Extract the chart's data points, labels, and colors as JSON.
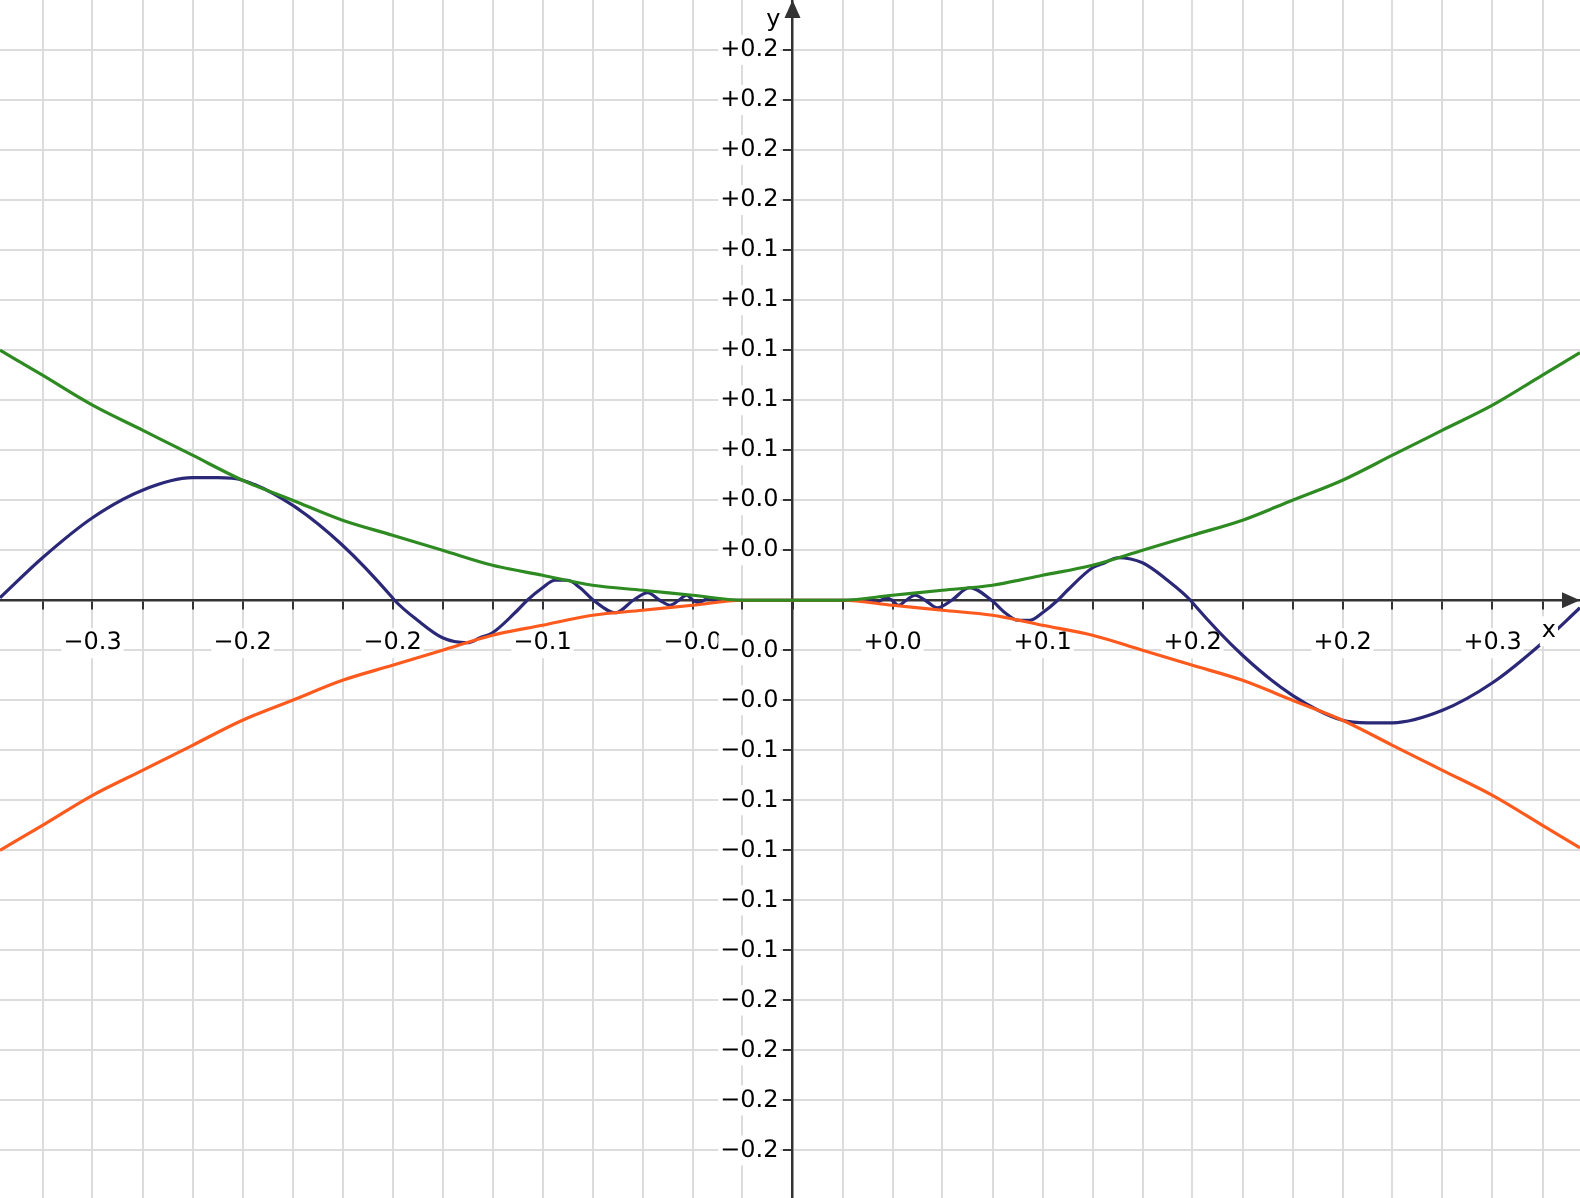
{
  "chart_data": {
    "type": "line",
    "xlabel": "x",
    "ylabel": "y",
    "legend": false,
    "grid": true,
    "marker": "none",
    "line_style": "solid",
    "xlim": [
      -0.317,
      0.315
    ],
    "ylim": [
      -0.239,
      0.24
    ],
    "xticks": [
      {
        "value": -0.3,
        "label": null
      },
      {
        "value": -0.28,
        "label": "−0.3"
      },
      {
        "value": -0.26,
        "label": null
      },
      {
        "value": -0.24,
        "label": null
      },
      {
        "value": -0.22,
        "label": "−0.2"
      },
      {
        "value": -0.2,
        "label": null
      },
      {
        "value": -0.18,
        "label": null
      },
      {
        "value": -0.16,
        "label": "−0.2"
      },
      {
        "value": -0.14,
        "label": null
      },
      {
        "value": -0.12,
        "label": null
      },
      {
        "value": -0.1,
        "label": "−0.1"
      },
      {
        "value": -0.08,
        "label": null
      },
      {
        "value": -0.06,
        "label": null
      },
      {
        "value": -0.04,
        "label": "−0.0"
      },
      {
        "value": -0.02,
        "label": null
      },
      {
        "value": 0,
        "label": null
      },
      {
        "value": 0.02,
        "label": null
      },
      {
        "value": 0.04,
        "label": "+0.0"
      },
      {
        "value": 0.06,
        "label": null
      },
      {
        "value": 0.08,
        "label": null
      },
      {
        "value": 0.1,
        "label": "+0.1"
      },
      {
        "value": 0.12,
        "label": null
      },
      {
        "value": 0.14,
        "label": null
      },
      {
        "value": 0.16,
        "label": "+0.2"
      },
      {
        "value": 0.18,
        "label": null
      },
      {
        "value": 0.2,
        "label": null
      },
      {
        "value": 0.22,
        "label": "+0.2"
      },
      {
        "value": 0.24,
        "label": null
      },
      {
        "value": 0.26,
        "label": null
      },
      {
        "value": 0.28,
        "label": "+0.3"
      },
      {
        "value": 0.3,
        "label": null
      }
    ],
    "yticks": [
      {
        "value": -0.22,
        "label": "−0.2"
      },
      {
        "value": -0.2,
        "label": "−0.2"
      },
      {
        "value": -0.18,
        "label": "−0.2"
      },
      {
        "value": -0.16,
        "label": "−0.2"
      },
      {
        "value": -0.14,
        "label": "−0.1"
      },
      {
        "value": -0.12,
        "label": "−0.1"
      },
      {
        "value": -0.1,
        "label": "−0.1"
      },
      {
        "value": -0.08,
        "label": "−0.1"
      },
      {
        "value": -0.06,
        "label": "−0.1"
      },
      {
        "value": -0.04,
        "label": "−0.0"
      },
      {
        "value": -0.02,
        "label": "−0.0"
      },
      {
        "value": 0,
        "label": null
      },
      {
        "value": 0.02,
        "label": "+0.0"
      },
      {
        "value": 0.04,
        "label": "+0.0"
      },
      {
        "value": 0.06,
        "label": "+0.1"
      },
      {
        "value": 0.08,
        "label": "+0.1"
      },
      {
        "value": 0.1,
        "label": "+0.1"
      },
      {
        "value": 0.12,
        "label": "+0.1"
      },
      {
        "value": 0.14,
        "label": "+0.1"
      },
      {
        "value": 0.16,
        "label": "+0.2"
      },
      {
        "value": 0.18,
        "label": "+0.2"
      },
      {
        "value": 0.2,
        "label": "+0.2"
      },
      {
        "value": 0.22,
        "label": "+0.2"
      }
    ],
    "series": [
      {
        "type": "line",
        "color": "#2e8b22",
        "x": [
          -0.317,
          -0.3,
          -0.28,
          -0.26,
          -0.24,
          -0.22,
          -0.2,
          -0.18,
          -0.16,
          -0.14,
          -0.12,
          -0.1,
          -0.08,
          -0.06,
          -0.04,
          -0.02,
          0,
          0.02,
          0.04,
          0.06,
          0.08,
          0.1,
          0.12,
          0.14,
          0.16,
          0.18,
          0.2,
          0.22,
          0.24,
          0.26,
          0.28,
          0.3,
          0.315
        ],
        "values": [
          0.1,
          0.09,
          0.078,
          0.068,
          0.058,
          0.048,
          0.04,
          0.032,
          0.026,
          0.02,
          0.014,
          0.01,
          0.006,
          0.004,
          0.002,
          0,
          0,
          0,
          0.002,
          0.004,
          0.006,
          0.01,
          0.014,
          0.02,
          0.026,
          0.032,
          0.04,
          0.048,
          0.058,
          0.068,
          0.078,
          0.09,
          0.099
        ]
      },
      {
        "type": "line",
        "color": "#ff5a1e",
        "x": [
          -0.317,
          -0.3,
          -0.28,
          -0.26,
          -0.24,
          -0.22,
          -0.2,
          -0.18,
          -0.16,
          -0.14,
          -0.12,
          -0.1,
          -0.08,
          -0.06,
          -0.04,
          -0.02,
          0,
          0.02,
          0.04,
          0.06,
          0.08,
          0.1,
          0.12,
          0.14,
          0.16,
          0.18,
          0.2,
          0.22,
          0.24,
          0.26,
          0.28,
          0.3,
          0.315
        ],
        "values": [
          -0.1,
          -0.09,
          -0.078,
          -0.068,
          -0.058,
          -0.048,
          -0.04,
          -0.032,
          -0.026,
          -0.02,
          -0.014,
          -0.01,
          -0.006,
          -0.004,
          -0.002,
          0,
          0,
          0,
          -0.002,
          -0.004,
          -0.006,
          -0.01,
          -0.014,
          -0.02,
          -0.026,
          -0.032,
          -0.04,
          -0.048,
          -0.058,
          -0.068,
          -0.078,
          -0.09,
          -0.099
        ]
      },
      {
        "type": "line",
        "color": "#2b2878",
        "x": [
          -0.317,
          -0.3,
          -0.28,
          -0.26,
          -0.24,
          -0.23,
          -0.22,
          -0.2,
          -0.18,
          -0.16,
          -0.1592,
          -0.15,
          -0.14,
          -0.13,
          -0.125,
          -0.12,
          -0.11,
          -0.1061,
          -0.1,
          -0.095,
          -0.09,
          -0.085,
          -0.0796,
          -0.0707,
          -0.0637,
          -0.0579,
          -0.0531,
          -0.049,
          -0.0455,
          -0.0424,
          -0.0398,
          -0.0374,
          -0.0354,
          -0.0335,
          -0.0318,
          0,
          0.0318,
          0.0335,
          0.0354,
          0.0374,
          0.0398,
          0.0424,
          0.0455,
          0.049,
          0.0531,
          0.0579,
          0.0637,
          0.0707,
          0.0796,
          0.085,
          0.09,
          0.095,
          0.1,
          0.1061,
          0.11,
          0.12,
          0.125,
          0.13,
          0.14,
          0.15,
          0.1592,
          0.16,
          0.18,
          0.2,
          0.22,
          0.23,
          0.24,
          0.26,
          0.28,
          0.3,
          0.315
        ],
        "values": [
          0.001,
          0.017,
          0.033,
          0.044,
          0.049,
          0.049,
          0.048,
          0.038,
          0.022,
          0.001,
          0,
          -0.008,
          -0.015,
          -0.017,
          -0.015,
          -0.013,
          -0.004,
          0,
          0.005,
          0.008,
          0.008,
          0.005,
          0,
          -0.005,
          0,
          0.003,
          0,
          -0.002,
          0,
          0.002,
          0,
          -0.001,
          0,
          0.001,
          0,
          0,
          0,
          -0.001,
          0,
          0.001,
          0,
          -0.002,
          0,
          0.002,
          0,
          -0.003,
          0,
          0.005,
          0,
          -0.005,
          -0.008,
          -0.008,
          -0.005,
          0,
          0.004,
          0.013,
          0.015,
          0.017,
          0.015,
          0.008,
          0,
          -0.001,
          -0.022,
          -0.038,
          -0.048,
          -0.049,
          -0.049,
          -0.044,
          -0.033,
          -0.017,
          -0.003
        ]
      }
    ]
  }
}
